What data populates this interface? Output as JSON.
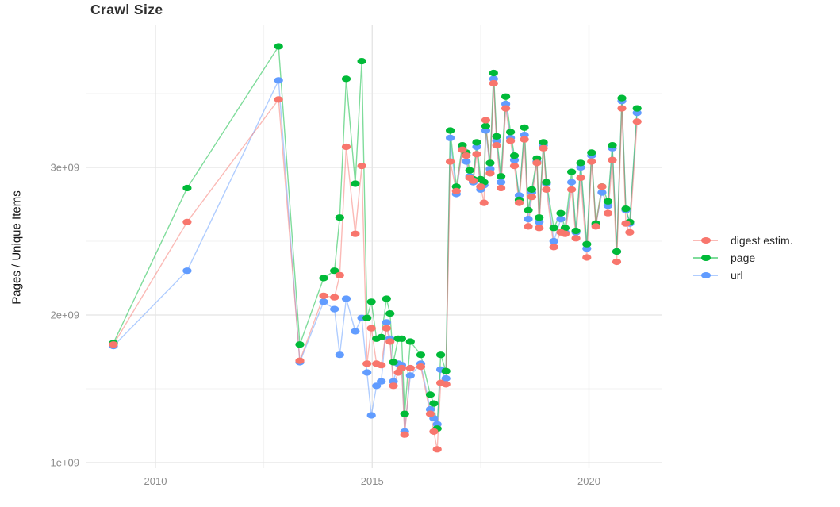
{
  "title": "Crawl Size",
  "y_axis_title": "Pages / Unique Items",
  "legend": {
    "entries": [
      {
        "label": "digest estim.",
        "color": "#F8766D"
      },
      {
        "label": "page",
        "color": "#00BA38"
      },
      {
        "label": "url",
        "color": "#619CFF"
      }
    ]
  },
  "colors": {
    "digest": "#F8766D",
    "page": "#00BA38",
    "url": "#619CFF",
    "grid_major": "#e4e4e4",
    "grid_minor": "#f1f1f1",
    "tick_label": "#8c8c8c",
    "background": "#ffffff"
  },
  "chart_data": {
    "type": "line",
    "title": "Crawl Size",
    "xlabel": "",
    "ylabel": "Pages / Unique Items",
    "value_unit": "1e+09 (billions)",
    "grid": true,
    "legend_position": "right",
    "x_axis_ticks": [
      {
        "value": 2010,
        "label": "2010"
      },
      {
        "value": 2015,
        "label": "2015"
      },
      {
        "value": 2020,
        "label": "2020"
      }
    ],
    "x_axis_minor_ticks": [
      2012.5,
      2017.5
    ],
    "y_axis_ticks": [
      {
        "value": 1,
        "label": "1e+09"
      },
      {
        "value": 2,
        "label": "2e+09"
      },
      {
        "value": 3,
        "label": "3e+09"
      }
    ],
    "y_axis_minor_ticks": [
      1.5,
      2.5,
      3.5
    ],
    "xlim": [
      2008.4,
      2021.8
    ],
    "ylim_billions": [
      0.96,
      3.97
    ],
    "x": [
      2009.03,
      2010.73,
      2012.84,
      2013.33,
      2013.88,
      2014.13,
      2014.25,
      2014.4,
      2014.61,
      2014.76,
      2014.88,
      2014.98,
      2015.1,
      2015.21,
      2015.33,
      2015.41,
      2015.49,
      2015.6,
      2015.68,
      2015.75,
      2015.88,
      2016.12,
      2016.34,
      2016.42,
      2016.5,
      2016.58,
      2016.7,
      2016.8,
      2016.94,
      2017.08,
      2017.17,
      2017.25,
      2017.33,
      2017.41,
      2017.5,
      2017.58,
      2017.62,
      2017.72,
      2017.8,
      2017.87,
      2017.97,
      2018.08,
      2018.19,
      2018.28,
      2018.39,
      2018.51,
      2018.6,
      2018.68,
      2018.8,
      2018.85,
      2018.95,
      2019.02,
      2019.19,
      2019.35,
      2019.45,
      2019.6,
      2019.7,
      2019.81,
      2019.95,
      2020.06,
      2020.16,
      2020.3,
      2020.44,
      2020.54,
      2020.64,
      2020.76,
      2020.85,
      2020.94,
      2021.11
    ],
    "series": [
      {
        "name": "digest estim.",
        "color": "#F8766D",
        "values_billions": [
          1.8,
          2.63,
          3.46,
          1.69,
          2.13,
          2.12,
          2.27,
          3.14,
          2.55,
          3.01,
          1.67,
          1.91,
          1.67,
          1.66,
          1.91,
          1.82,
          1.52,
          1.61,
          1.64,
          1.19,
          1.64,
          1.65,
          1.33,
          1.21,
          1.09,
          1.54,
          1.53,
          3.04,
          2.84,
          3.12,
          3.08,
          2.93,
          2.91,
          3.09,
          2.87,
          2.76,
          3.32,
          2.96,
          3.57,
          3.15,
          2.86,
          3.4,
          3.18,
          3.01,
          2.76,
          3.19,
          2.6,
          2.8,
          3.03,
          2.59,
          3.13,
          2.85,
          2.46,
          2.56,
          2.55,
          2.85,
          2.52,
          2.93,
          2.39,
          3.04,
          2.6,
          2.87,
          2.69,
          3.05,
          2.36,
          3.4,
          2.62,
          2.56,
          3.31
        ]
      },
      {
        "name": "page",
        "color": "#00BA38",
        "values_billions": [
          1.81,
          2.86,
          3.82,
          1.8,
          2.25,
          2.3,
          2.66,
          3.6,
          2.89,
          3.72,
          1.98,
          2.09,
          1.84,
          1.85,
          2.11,
          2.01,
          1.68,
          1.84,
          1.84,
          1.33,
          1.82,
          1.73,
          1.46,
          1.4,
          1.23,
          1.73,
          1.62,
          3.25,
          2.87,
          3.15,
          3.1,
          2.98,
          2.92,
          3.17,
          2.92,
          2.9,
          3.28,
          3.03,
          3.64,
          3.21,
          2.94,
          3.48,
          3.24,
          3.08,
          2.78,
          3.27,
          2.71,
          2.85,
          3.06,
          2.66,
          3.17,
          2.9,
          2.59,
          2.69,
          2.59,
          2.97,
          2.57,
          3.03,
          2.48,
          3.1,
          2.62,
          2.87,
          2.77,
          3.15,
          2.43,
          3.47,
          2.72,
          2.63,
          3.4
        ]
      },
      {
        "name": "url",
        "color": "#619CFF",
        "values_billions": [
          1.79,
          2.3,
          3.59,
          1.68,
          2.09,
          2.04,
          1.73,
          2.11,
          1.89,
          1.98,
          1.61,
          1.32,
          1.52,
          1.55,
          1.95,
          1.84,
          1.55,
          1.67,
          1.66,
          1.21,
          1.59,
          1.67,
          1.36,
          1.3,
          1.26,
          1.63,
          1.57,
          3.2,
          2.82,
          3.13,
          3.04,
          2.94,
          2.9,
          3.14,
          2.85,
          2.88,
          3.25,
          2.99,
          3.6,
          3.18,
          2.9,
          3.43,
          3.2,
          3.05,
          2.81,
          3.22,
          2.65,
          2.83,
          3.04,
          2.63,
          3.15,
          2.89,
          2.5,
          2.65,
          2.56,
          2.9,
          2.56,
          3.0,
          2.45,
          3.08,
          2.61,
          2.83,
          2.74,
          3.13,
          2.43,
          3.45,
          2.71,
          2.62,
          3.37
        ]
      }
    ]
  }
}
